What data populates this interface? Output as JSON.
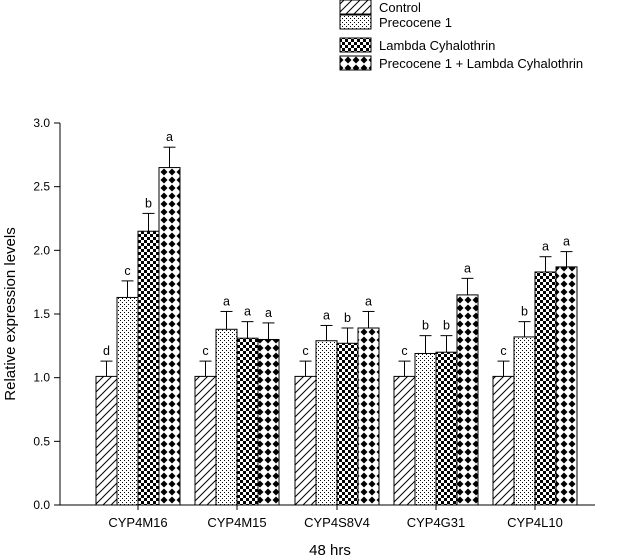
{
  "chart_data": {
    "type": "bar",
    "title": "",
    "xlabel": "48 hrs",
    "ylabel": "Relative expression levels",
    "ylim": [
      0,
      3.0
    ],
    "yticks": [
      "0.0",
      "0.5",
      "1.0",
      "1.5",
      "2.0",
      "2.5",
      "3.0"
    ],
    "categories": [
      "CYP4M16",
      "CYP4M15",
      "CYP4S8V4",
      "CYP4G31",
      "CYP4L10"
    ],
    "legend_position": "top-right",
    "series": [
      {
        "name": "Control",
        "pattern": "diagonal-hatch",
        "values": [
          1.01,
          1.01,
          1.01,
          1.01,
          1.01
        ],
        "errors": [
          0.12,
          0.12,
          0.12,
          0.12,
          0.12
        ],
        "labels": [
          "d",
          "c",
          "c",
          "c",
          "c"
        ]
      },
      {
        "name": "Precocene 1",
        "pattern": "fine-dots",
        "values": [
          1.63,
          1.38,
          1.29,
          1.19,
          1.32
        ],
        "errors": [
          0.13,
          0.14,
          0.12,
          0.14,
          0.12
        ],
        "labels": [
          "c",
          "a",
          "a",
          "b",
          "b"
        ]
      },
      {
        "name": "Lambda Cyhalothrin",
        "pattern": "checkerboard",
        "values": [
          2.15,
          1.31,
          1.27,
          1.2,
          1.83
        ],
        "errors": [
          0.14,
          0.13,
          0.12,
          0.13,
          0.12
        ],
        "labels": [
          "b",
          "a",
          "b",
          "b",
          "a"
        ]
      },
      {
        "name": "Precocene 1 + Lambda Cyhalothrin",
        "pattern": "diamonds",
        "values": [
          2.65,
          1.3,
          1.39,
          1.65,
          1.87
        ],
        "errors": [
          0.16,
          0.13,
          0.13,
          0.13,
          0.12
        ],
        "labels": [
          "a",
          "a",
          "a",
          "a",
          "a"
        ]
      }
    ]
  }
}
